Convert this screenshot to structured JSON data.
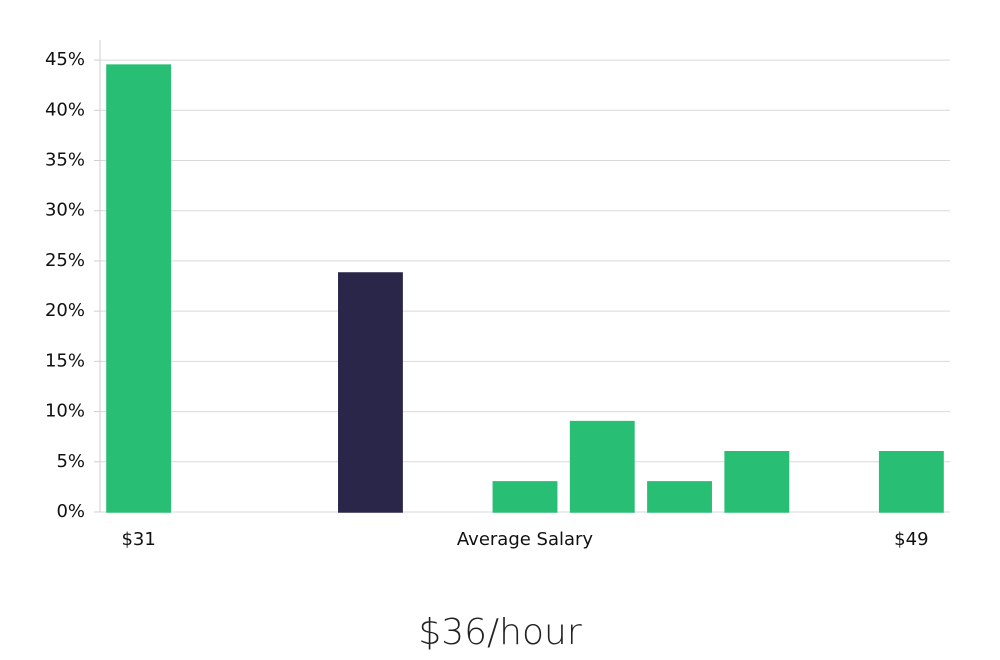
{
  "chart_data": {
    "type": "bar",
    "title": "$36/hour",
    "x_label": "Average Salary",
    "categories": [
      "$31",
      null,
      null,
      null,
      null,
      null,
      null,
      null,
      null,
      null,
      "$49"
    ],
    "values": [
      44.5,
      0,
      0,
      23.8,
      0,
      3,
      9,
      3,
      6,
      0,
      6
    ],
    "colors": [
      "#28be74",
      "#28be74",
      "#28be74",
      "#29264a",
      "#28be74",
      "#28be74",
      "#28be74",
      "#28be74",
      "#28be74",
      "#28be74",
      "#28be74"
    ],
    "ylim": [
      0,
      47
    ],
    "yticks": [
      {
        "value": 0,
        "label": "0%"
      },
      {
        "value": 5,
        "label": "5%"
      },
      {
        "value": 10,
        "label": "10%"
      },
      {
        "value": 15,
        "label": "15%"
      },
      {
        "value": 20,
        "label": "20%"
      },
      {
        "value": 25,
        "label": "25%"
      },
      {
        "value": 30,
        "label": "30%"
      },
      {
        "value": 35,
        "label": "35%"
      },
      {
        "value": 40,
        "label": "40%"
      },
      {
        "value": 45,
        "label": "45%"
      }
    ],
    "grid": true
  }
}
